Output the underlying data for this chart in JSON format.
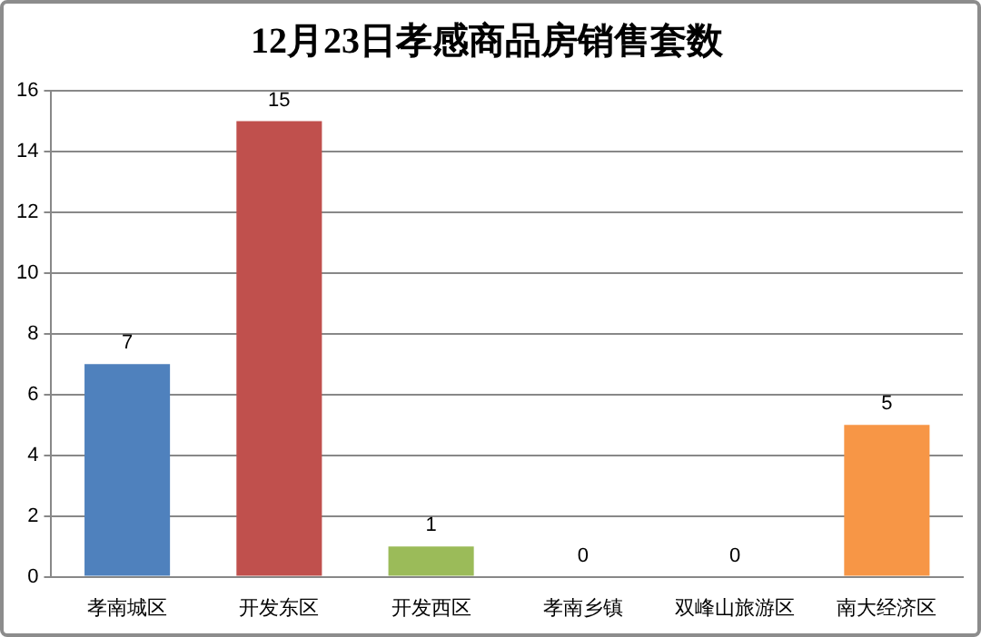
{
  "chart_data": {
    "type": "bar",
    "title": "12月23日孝感商品房销售套数",
    "categories": [
      "孝南城区",
      "开发东区",
      "开发西区",
      "孝南乡镇",
      "双峰山旅游区",
      "南大经济区"
    ],
    "values": [
      7,
      15,
      1,
      0,
      0,
      5
    ],
    "colors": [
      "#4f81bd",
      "#c0504d",
      "#9bbb59",
      "#8064a2",
      "#4bacc6",
      "#f79646"
    ],
    "ylim": [
      0,
      16
    ],
    "yticks": [
      0,
      2,
      4,
      6,
      8,
      10,
      12,
      14,
      16
    ],
    "grid": "y",
    "data_labels": true,
    "legend": false
  }
}
